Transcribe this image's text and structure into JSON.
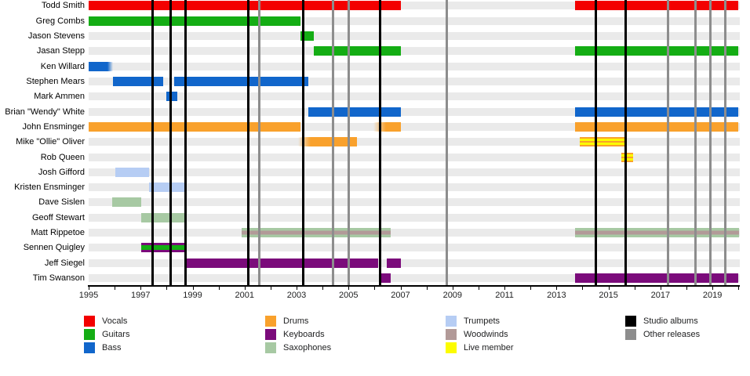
{
  "chart_data": {
    "type": "timeline",
    "title": "",
    "xlabel": "",
    "ylabel": "",
    "axis": {
      "start_year": 1995,
      "end_year": 2020,
      "tick_interval_years": 1,
      "labeled_years": [
        1995,
        1997,
        1999,
        2001,
        2003,
        2005,
        2007,
        2009,
        2011,
        2013,
        2015,
        2017,
        2019
      ],
      "grid": "off",
      "legend_position": "bottom"
    },
    "colors": {
      "vocals": "#f30000",
      "guitars": "#14ad14",
      "bass": "#1166cb",
      "drums": "#f9a12c",
      "keyboards": "#7b0b7b",
      "saxophones": "#a7c9a3",
      "trumpets": "#b6cdf4",
      "woodwinds": "#b29a98",
      "live": "#fcfc00",
      "studio": "#000000",
      "other": "#8d8d8d"
    },
    "patterns": {
      "drums_live": [
        [
          "drums",
          0,
          18
        ],
        [
          "live",
          18,
          43
        ],
        [
          "drums",
          43,
          57
        ],
        [
          "live",
          57,
          82
        ],
        [
          "drums",
          82,
          100
        ]
      ],
      "keyboards_guitars": [
        [
          "keyboards",
          0,
          27
        ],
        [
          "guitars",
          27,
          73
        ],
        [
          "keyboards",
          73,
          100
        ]
      ],
      "sax_woodwinds": [
        [
          "saxophones",
          0,
          31
        ],
        [
          "woodwinds",
          31,
          69
        ],
        [
          "saxophones",
          69,
          100
        ]
      ]
    },
    "rows": [
      {
        "name": "Todd Smith",
        "instruments": [
          "Vocals"
        ],
        "bars": [
          {
            "start": 1995.0,
            "end": 2007.0,
            "color": "vocals"
          },
          {
            "start": 2013.72,
            "end": 2020.0,
            "color": "vocals"
          }
        ]
      },
      {
        "name": "Greg Combs",
        "instruments": [
          "Guitars"
        ],
        "bars": [
          {
            "start": 1995.0,
            "end": 2003.14,
            "color": "guitars"
          }
        ]
      },
      {
        "name": "Jason Stevens",
        "instruments": [
          "Guitars"
        ],
        "bars": [
          {
            "start": 2003.14,
            "end": 2003.66,
            "color": "guitars"
          }
        ]
      },
      {
        "name": "Jasan Stepp",
        "instruments": [
          "Guitars"
        ],
        "bars": [
          {
            "start": 2003.66,
            "end": 2007.0,
            "color": "guitars"
          },
          {
            "start": 2013.72,
            "end": 2020.0,
            "color": "guitars"
          }
        ]
      },
      {
        "name": "Ken Willard",
        "instruments": [
          "Bass"
        ],
        "bars": [
          {
            "start": 1995.0,
            "end": 1995.95,
            "color": "bass",
            "fade": "right"
          }
        ]
      },
      {
        "name": "Stephen Mears",
        "instruments": [
          "Bass"
        ],
        "bars": [
          {
            "start": 1995.93,
            "end": 1997.86,
            "color": "bass"
          },
          {
            "start": 1998.29,
            "end": 2003.44,
            "color": "bass"
          }
        ]
      },
      {
        "name": "Mark Ammen",
        "instruments": [
          "Bass"
        ],
        "bars": [
          {
            "start": 1997.98,
            "end": 1998.41,
            "color": "bass"
          }
        ]
      },
      {
        "name": "Brian \"Wendy\" White",
        "instruments": [
          "Bass"
        ],
        "bars": [
          {
            "start": 2003.44,
            "end": 2007.0,
            "color": "bass"
          },
          {
            "start": 2013.72,
            "end": 2020.0,
            "color": "bass"
          }
        ]
      },
      {
        "name": "John Ensminger",
        "instruments": [
          "Drums"
        ],
        "bars": [
          {
            "start": 1995.0,
            "end": 2003.14,
            "color": "drums"
          },
          {
            "start": 2005.97,
            "end": 2007.0,
            "color": "drums",
            "fade": "left"
          },
          {
            "start": 2013.72,
            "end": 2020.0,
            "color": "drums"
          }
        ]
      },
      {
        "name": "Mike \"Ollie\" Oliver",
        "instruments": [
          "Drums",
          "Live member"
        ],
        "bars": [
          {
            "start": 2003.05,
            "end": 2005.31,
            "color": "drums",
            "fade": "left"
          },
          {
            "start": 2013.9,
            "end": 2015.62,
            "pattern": "drums_live"
          }
        ]
      },
      {
        "name": "Rob Queen",
        "instruments": [
          "Drums",
          "Live member"
        ],
        "bars": [
          {
            "start": 2015.5,
            "end": 2015.95,
            "pattern": "drums_live"
          }
        ]
      },
      {
        "name": "Josh Gifford",
        "instruments": [
          "Trumpets"
        ],
        "bars": [
          {
            "start": 1996.02,
            "end": 1997.32,
            "color": "trumpets"
          }
        ]
      },
      {
        "name": "Kristen Ensminger",
        "instruments": [
          "Trumpets"
        ],
        "bars": [
          {
            "start": 1997.32,
            "end": 1998.77,
            "color": "trumpets"
          }
        ]
      },
      {
        "name": "Dave Sislen",
        "instruments": [
          "Saxophones"
        ],
        "bars": [
          {
            "start": 1995.9,
            "end": 1997.02,
            "color": "saxophones"
          }
        ]
      },
      {
        "name": "Geoff Stewart",
        "instruments": [
          "Saxophones"
        ],
        "bars": [
          {
            "start": 1997.02,
            "end": 1998.77,
            "color": "saxophones"
          }
        ]
      },
      {
        "name": "Matt Rippetoe",
        "instruments": [
          "Saxophones",
          "Woodwinds"
        ],
        "bars": [
          {
            "start": 2000.88,
            "end": 2006.61,
            "pattern": "sax_woodwinds"
          },
          {
            "start": 2013.72,
            "end": 2020.03,
            "pattern": "sax_woodwinds"
          }
        ]
      },
      {
        "name": "Sennen Quigley",
        "instruments": [
          "Keyboards",
          "Guitars"
        ],
        "bars": [
          {
            "start": 1997.02,
            "end": 1998.74,
            "pattern": "keyboards_guitars"
          }
        ]
      },
      {
        "name": "Jeff Siegel",
        "instruments": [
          "Keyboards"
        ],
        "bars": [
          {
            "start": 1998.71,
            "end": 2006.13,
            "color": "keyboards"
          },
          {
            "start": 2006.46,
            "end": 2007.0,
            "color": "keyboards"
          }
        ]
      },
      {
        "name": "Tim Swanson",
        "instruments": [
          "Keyboards"
        ],
        "bars": [
          {
            "start": 2006.16,
            "end": 2006.61,
            "color": "keyboards"
          },
          {
            "start": 2013.72,
            "end": 2020.0,
            "color": "keyboards"
          }
        ]
      }
    ],
    "events": {
      "studio_albums_years": [
        1997.47,
        1998.14,
        1998.72,
        2001.15,
        2003.26,
        2006.21,
        2014.5,
        2015.65
      ],
      "other_releases_years": [
        2001.57,
        2004.4,
        2005.0,
        2008.78,
        2017.3,
        2018.36,
        2018.93,
        2019.48
      ]
    },
    "legend": {
      "columns": [
        [
          {
            "label": "Vocals",
            "color": "vocals"
          },
          {
            "label": "Guitars",
            "color": "guitars"
          },
          {
            "label": "Bass",
            "color": "bass"
          }
        ],
        [
          {
            "label": "Drums",
            "color": "drums"
          },
          {
            "label": "Keyboards",
            "color": "keyboards"
          },
          {
            "label": "Saxophones",
            "color": "saxophones"
          }
        ],
        [
          {
            "label": "Trumpets",
            "color": "trumpets"
          },
          {
            "label": "Woodwinds",
            "color": "woodwinds"
          },
          {
            "label": "Live member",
            "color": "live"
          }
        ],
        [
          {
            "label": "Studio albums",
            "color": "studio"
          },
          {
            "label": "Other releases",
            "color": "other"
          }
        ]
      ]
    }
  }
}
